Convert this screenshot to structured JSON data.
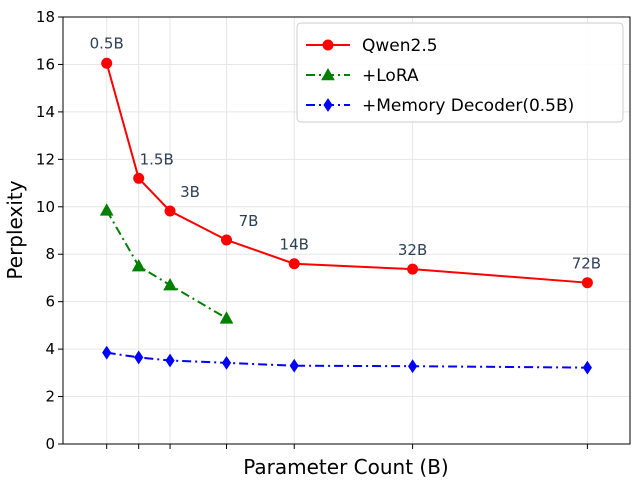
{
  "chart_data": {
    "type": "line",
    "xlabel": "Parameter Count (B)",
    "ylabel": "Perplexity",
    "ylim": [
      0,
      18
    ],
    "yticks": [
      0,
      2,
      4,
      6,
      8,
      10,
      12,
      14,
      16,
      18
    ],
    "x_scale": "sqrt",
    "x_tick_labels_shown": false,
    "xlim": [
      0,
      80
    ],
    "grid": true,
    "legend_position": "top-right",
    "series": [
      {
        "name": "Qwen2.5",
        "color": "#ff0000",
        "marker": "circle",
        "linestyle": "solid",
        "x": [
          0.5,
          1.5,
          3,
          7,
          14,
          32,
          72
        ],
        "values": [
          16.05,
          11.2,
          9.82,
          8.6,
          7.6,
          7.37,
          6.8
        ],
        "point_labels": [
          "0.5B",
          "1.5B",
          "3B",
          "7B",
          "14B",
          "32B",
          "72B"
        ]
      },
      {
        "name": "+LoRA",
        "color": "#008000",
        "marker": "triangle",
        "linestyle": "dashdot",
        "x": [
          0.5,
          1.5,
          3,
          7
        ],
        "values": [
          9.85,
          7.5,
          6.7,
          5.3
        ]
      },
      {
        "name": "+Memory Decoder(0.5B)",
        "color": "#0000ff",
        "marker": "diamond",
        "linestyle": "dashdot",
        "x": [
          0.5,
          1.5,
          3,
          7,
          14,
          32,
          72
        ],
        "values": [
          3.85,
          3.65,
          3.52,
          3.42,
          3.3,
          3.28,
          3.22
        ]
      }
    ]
  }
}
